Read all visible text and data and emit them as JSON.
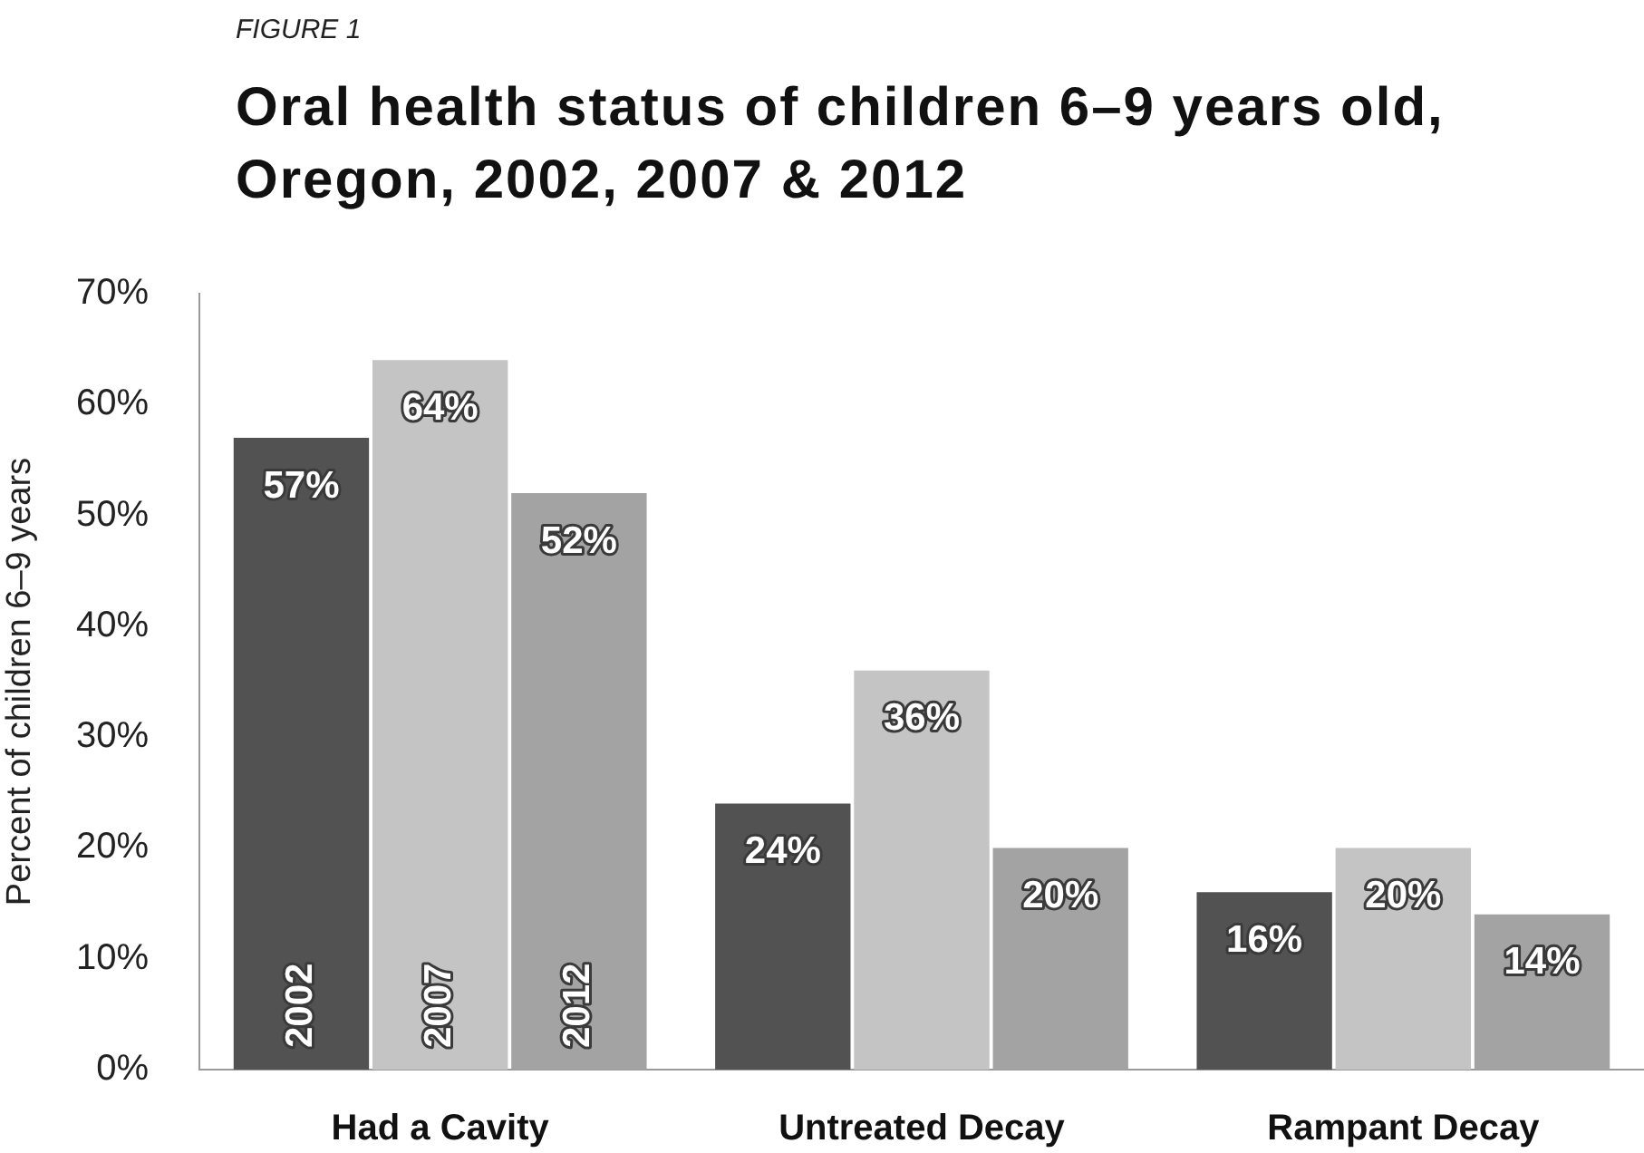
{
  "chart_data": {
    "type": "bar",
    "annotations": [
      "FIGURE 1"
    ],
    "title": "Oral health status of children 6–9 years old, Oregon, 2002, 2007 & 2012",
    "ylabel": "Percent of children 6–9 years",
    "categories": [
      "Had a Cavity",
      "Untreated Decay",
      "Rampant Decay"
    ],
    "series": [
      {
        "name": "2002",
        "color": "#525252",
        "values": [
          57,
          24,
          16
        ],
        "value_labels": [
          "57%",
          "24%",
          "16%"
        ]
      },
      {
        "name": "2007",
        "color": "#c4c4c4",
        "values": [
          64,
          36,
          20
        ],
        "value_labels": [
          "64%",
          "36%",
          "20%"
        ]
      },
      {
        "name": "2012",
        "color": "#a3a3a3",
        "values": [
          52,
          20,
          14
        ],
        "value_labels": [
          "52%",
          "20%",
          "14%"
        ]
      }
    ],
    "ylim": [
      0,
      70
    ],
    "yticks": [
      {
        "value": 0,
        "label": "0%"
      },
      {
        "value": 10,
        "label": "10%"
      },
      {
        "value": 20,
        "label": "20%"
      },
      {
        "value": 30,
        "label": "30%"
      },
      {
        "value": 40,
        "label": "40%"
      },
      {
        "value": 50,
        "label": "50%"
      },
      {
        "value": 60,
        "label": "60%"
      },
      {
        "value": 70,
        "label": "70%"
      }
    ]
  }
}
